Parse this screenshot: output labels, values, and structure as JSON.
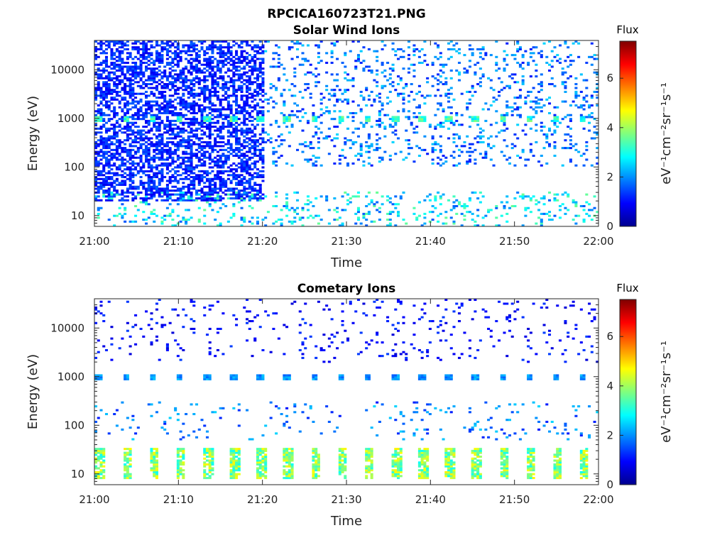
{
  "figure_title": "RPCICA160723T21.PNG",
  "chart_data": [
    {
      "type": "heatmap",
      "title": "Solar Wind Ions",
      "xlabel": "Time",
      "ylabel": "Energy (eV)",
      "x_ticks": [
        "21:00",
        "21:10",
        "21:20",
        "21:30",
        "21:40",
        "21:50",
        "22:00"
      ],
      "x_range_minutes": [
        0,
        60
      ],
      "y_scale": "log",
      "y_ticks": [
        10,
        100,
        1000,
        10000
      ],
      "y_range": [
        6,
        40000
      ],
      "colorbar_title": "Flux",
      "colorbar_unit": "eV⁻¹cm⁻²sr⁻¹s⁻¹",
      "colorbar_ticks": [
        0,
        2,
        4,
        6
      ],
      "colorbar_range": [
        0,
        7.5
      ],
      "colormap": [
        "#00008f",
        "#0000ff",
        "#007fff",
        "#00ffff",
        "#7fff7f",
        "#ffff00",
        "#ff7f00",
        "#ff0000",
        "#7f0000"
      ],
      "features": [
        {
          "description": "dense low-flux band",
          "energy_range_eV": [
            20,
            40000
          ],
          "time_range_min": [
            0,
            20
          ],
          "flux": 1.2
        },
        {
          "description": "sparse scattered counts",
          "energy_range_eV": [
            100,
            40000
          ],
          "time_range_min": [
            20,
            60
          ],
          "flux": 1.8
        },
        {
          "description": "periodic peaks near 1000 eV",
          "energy_eV": 1000,
          "period_min": 3.2,
          "flux": 3.2
        },
        {
          "description": "low-energy band",
          "energy_range_eV": [
            6,
            30
          ],
          "time_range_min": [
            0,
            60
          ],
          "flux": 2.6
        }
      ]
    },
    {
      "type": "heatmap",
      "title": "Cometary Ions",
      "xlabel": "Time",
      "ylabel": "Energy (eV)",
      "x_ticks": [
        "21:00",
        "21:10",
        "21:20",
        "21:30",
        "21:40",
        "21:50",
        "22:00"
      ],
      "x_range_minutes": [
        0,
        60
      ],
      "y_scale": "log",
      "y_ticks": [
        10,
        100,
        1000,
        10000
      ],
      "y_range": [
        6,
        40000
      ],
      "colorbar_title": "Flux",
      "colorbar_unit": "eV⁻¹cm⁻²sr⁻¹s⁻¹",
      "colorbar_ticks": [
        0,
        2,
        4,
        6
      ],
      "colorbar_range": [
        0,
        7.5
      ],
      "colormap": [
        "#00008f",
        "#0000ff",
        "#007fff",
        "#00ffff",
        "#7fff7f",
        "#ffff00",
        "#ff7f00",
        "#ff0000",
        "#7f0000"
      ],
      "features": [
        {
          "description": "sparse high-energy counts",
          "energy_range_eV": [
            2000,
            40000
          ],
          "time_range_min": [
            0,
            60
          ],
          "flux": 1.0
        },
        {
          "description": "periodic peaks near 1000 eV",
          "energy_eV": 1000,
          "period_min": 3.2,
          "flux": 2.0
        },
        {
          "description": "scattered counts",
          "energy_range_eV": [
            50,
            300
          ],
          "time_range_min": [
            0,
            60
          ],
          "flux": 1.8
        },
        {
          "description": "periodic low-energy peaks",
          "energy_range_eV": [
            8,
            35
          ],
          "period_min": 3.2,
          "flux": 4.0
        }
      ]
    }
  ]
}
